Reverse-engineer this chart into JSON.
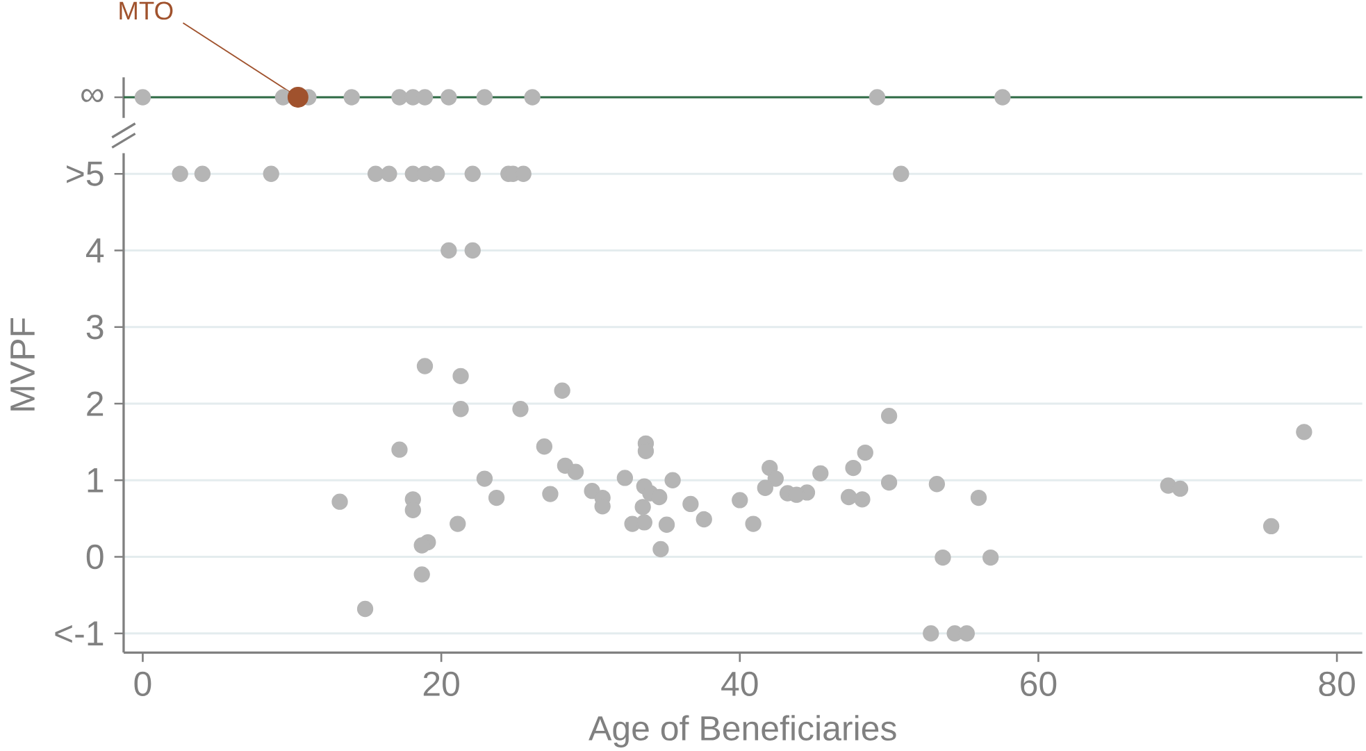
{
  "chart_data": {
    "type": "scatter",
    "xlabel": "Age of Beneficiaries",
    "ylabel": "MVPF",
    "xlim": [
      -1.28,
      81.7
    ],
    "ylim": [
      -1.25,
      6.26
    ],
    "xticks": [
      0,
      20,
      40,
      60,
      80
    ],
    "yticks": [
      {
        "value": -1,
        "label": "<-1"
      },
      0,
      1,
      2,
      3,
      4,
      {
        "value": 5,
        "label": ">5"
      },
      {
        "value": 6,
        "label": "∞"
      }
    ],
    "grid": "y",
    "marker": "circle",
    "ref_lines": [
      {
        "axis": "y",
        "value": 6,
        "color": "#2f6b45"
      }
    ],
    "annotations": [
      {
        "text": "MTO",
        "x": 10.4,
        "y": 6
      }
    ],
    "series": [
      {
        "color": "#b5b5b5",
        "x": [
          0,
          9.4,
          11.1,
          14.0,
          17.2,
          18.1,
          18.9,
          20.5,
          22.9,
          26.1,
          49.2,
          57.6,
          2.5,
          4.0,
          8.6,
          15.6,
          16.5,
          18.1,
          18.9,
          19.7,
          22.1,
          24.5,
          24.8,
          25.5,
          50.8,
          20.5,
          22.1,
          18.9,
          21.3,
          21.3,
          25.3,
          28.1,
          50.0,
          77.8,
          17.2,
          26.9,
          33.7,
          33.7,
          48.4,
          28.3,
          29.0,
          42.0,
          47.6,
          45.4,
          42.4,
          22.9,
          32.3,
          35.5,
          50.0,
          53.2,
          33.6,
          68.7,
          69.5,
          30.1,
          41.7,
          34.0,
          43.2,
          44.5,
          43.8,
          27.3,
          34.6,
          30.8,
          13.2,
          18.1,
          23.7,
          47.3,
          48.2,
          56.0,
          40.0,
          36.7,
          33.5,
          30.8,
          18.1,
          37.6,
          21.1,
          32.8,
          33.6,
          35.1,
          40.9,
          75.6,
          19.1,
          18.7,
          34.7,
          53.6,
          56.8,
          18.7,
          14.9,
          52.8,
          54.4,
          55.2
        ],
        "values": [
          6,
          6,
          6,
          6,
          6,
          6,
          6,
          6,
          6,
          6,
          6,
          6,
          5,
          5,
          5,
          5,
          5,
          5,
          5,
          5,
          5,
          5,
          5,
          5,
          5,
          4,
          4,
          2.49,
          2.36,
          1.93,
          1.93,
          2.17,
          1.84,
          1.63,
          1.4,
          1.44,
          1.48,
          1.38,
          1.36,
          1.19,
          1.11,
          1.16,
          1.16,
          1.09,
          1.02,
          1.02,
          1.03,
          1.0,
          0.97,
          0.95,
          0.92,
          0.93,
          0.89,
          0.86,
          0.9,
          0.83,
          0.83,
          0.84,
          0.81,
          0.82,
          0.78,
          0.77,
          0.72,
          0.75,
          0.77,
          0.78,
          0.75,
          0.77,
          0.74,
          0.69,
          0.65,
          0.66,
          0.61,
          0.49,
          0.43,
          0.43,
          0.45,
          0.42,
          0.43,
          0.4,
          0.19,
          0.15,
          0.1,
          -0.01,
          -0.01,
          -0.23,
          -0.68,
          -1,
          -1,
          -1
        ]
      },
      {
        "color": "#a0522d",
        "x": [
          10.4
        ],
        "values": [
          6
        ]
      }
    ]
  }
}
